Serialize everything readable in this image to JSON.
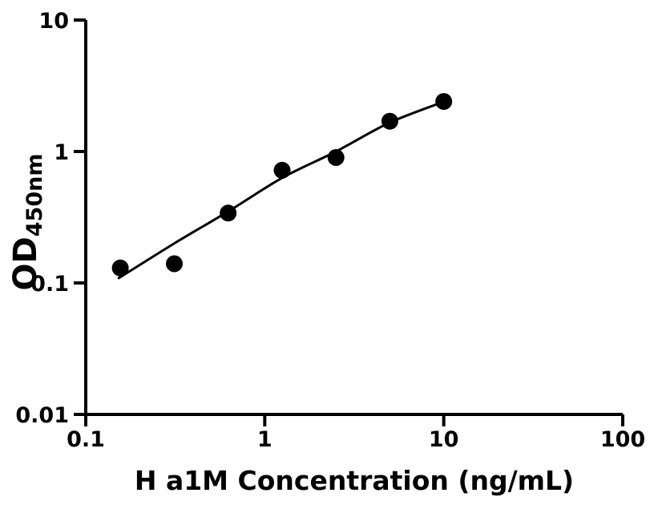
{
  "figure": {
    "background_color": "#ffffff",
    "foreground_color": "#000000"
  },
  "chart_data": {
    "type": "scatter",
    "title": "",
    "xlabel": "H a1M Concentration (ng/mL)",
    "ylabel_main": "OD",
    "ylabel_sub": "450nm",
    "grid": false,
    "legend": false,
    "x_axis": {
      "scale": "log",
      "range": [
        0.1,
        100
      ],
      "ticks": [
        0.1,
        1,
        10,
        100
      ],
      "tick_labels": [
        "0.1",
        "1",
        "10",
        "100"
      ]
    },
    "y_axis": {
      "scale": "log",
      "range": [
        0.01,
        10
      ],
      "ticks": [
        0.01,
        0.1,
        1,
        10
      ],
      "tick_labels": [
        "0.01",
        "0.1",
        "1",
        "10"
      ]
    },
    "series": [
      {
        "name": "standard-data-points",
        "type": "scatter",
        "marker": "filled-circle",
        "color": "#000000",
        "x": [
          0.156,
          0.3125,
          0.625,
          1.25,
          2.5,
          5,
          10
        ],
        "y": [
          0.13,
          0.14,
          0.34,
          0.72,
          0.9,
          1.7,
          2.4
        ]
      },
      {
        "name": "fitted-curve",
        "type": "line",
        "color": "#000000",
        "x": [
          0.153,
          0.3125,
          0.625,
          1.25,
          2.5,
          5,
          10
        ],
        "y": [
          0.109,
          0.2,
          0.35,
          0.63,
          1.0,
          1.66,
          2.39
        ]
      }
    ]
  }
}
